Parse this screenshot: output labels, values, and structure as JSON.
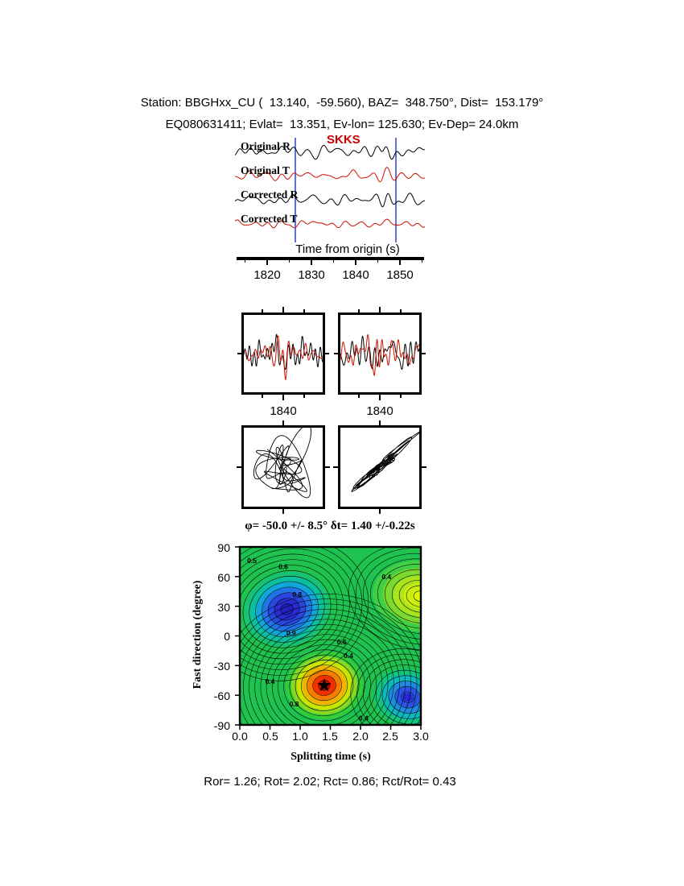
{
  "header": {
    "line1": "Station: BBGHxx_CU (  13.140,  -59.560), BAZ=  348.750°, Dist=  153.179°",
    "line2": "EQ080631411; Evlat=  13.351, Ev-lon= 125.630; Ev-Dep= 24.0km"
  },
  "waveforms": {
    "phase_label": "SKKS",
    "traces": [
      "Original R",
      "Original T",
      "Corrected R",
      "Corrected T"
    ],
    "trace_colors": [
      "#000000",
      "#cc1100",
      "#000000",
      "#cc1100"
    ],
    "window_color": "#2233cc",
    "xlabel": "Time from origin (s)",
    "xticks": [
      "1820",
      "1830",
      "1840",
      "1850"
    ]
  },
  "panels": {
    "left_tick": "1840",
    "right_tick": "1840"
  },
  "contour": {
    "title": "φ= -50.0 +/- 8.5°  δt= 1.40 +/-0.22s",
    "ylabel": "Fast direction (degree)",
    "xlabel": "Splitting time (s)",
    "yticks": [
      "90",
      "60",
      "30",
      "0",
      "-30",
      "-60",
      "-90"
    ],
    "xticks": [
      "0.0",
      "0.5",
      "1.0",
      "1.5",
      "2.0",
      "2.5",
      "3.0"
    ]
  },
  "footer": "Ror= 1.26; Rot= 2.02; Rct= 0.86; Rct/Rot= 0.43",
  "results": {
    "Ror": 1.26,
    "Rot": 2.02,
    "Rct": 0.86,
    "Rct_over_Rot": 0.43
  },
  "chart_data": [
    {
      "type": "line",
      "id": "origin-waveforms",
      "series": [
        {
          "name": "Original R",
          "color": "#000000"
        },
        {
          "name": "Original T",
          "color": "#cc1100"
        },
        {
          "name": "Corrected R",
          "color": "#000000"
        },
        {
          "name": "Corrected T",
          "color": "#cc1100"
        }
      ],
      "phase": "SKKS",
      "xlabel": "Time from origin (s)",
      "xlim": [
        1813,
        1856
      ],
      "xticks": [
        1820,
        1830,
        1840,
        1850
      ],
      "analysis_window_s": [
        1826,
        1849
      ]
    },
    {
      "type": "line",
      "id": "window-original",
      "series": [
        {
          "name": "R",
          "color": "#000000"
        },
        {
          "name": "T",
          "color": "#cc1100"
        }
      ],
      "xticks": [
        1840
      ]
    },
    {
      "type": "line",
      "id": "window-corrected",
      "series": [
        {
          "name": "R",
          "color": "#000000"
        },
        {
          "name": "T",
          "color": "#cc1100"
        }
      ],
      "xticks": [
        1840
      ]
    },
    {
      "type": "scatter",
      "id": "particle-motion-original",
      "description": "R vs T particle motion, elliptical loops"
    },
    {
      "type": "scatter",
      "id": "particle-motion-corrected",
      "description": "R vs T particle motion, linearized diagonal"
    },
    {
      "type": "heatmap",
      "id": "splitting-error-surface",
      "title": "φ= -50.0 +/- 8.5°  δt= 1.40 +/-0.22s",
      "xlabel": "Splitting time (s)",
      "ylabel": "Fast direction (degree)",
      "xlim": [
        0,
        3
      ],
      "ylim": [
        -90,
        90
      ],
      "xticks": [
        0.0,
        0.5,
        1.0,
        1.5,
        2.0,
        2.5,
        3.0
      ],
      "yticks": [
        90,
        60,
        30,
        0,
        -30,
        -60,
        -90
      ],
      "background_color": "#1fc24f",
      "best_fit": {
        "phi_deg": -50.0,
        "phi_err_deg": 8.5,
        "dt_s": 1.4,
        "dt_err_s": 0.22,
        "marker": "star"
      },
      "minima_maxima": [
        {
          "t": 0.78,
          "phi": 27,
          "kind": "low",
          "color": "blue"
        },
        {
          "t": 3.0,
          "phi": 40,
          "kind": "high",
          "color": "yellow"
        },
        {
          "t": 1.4,
          "phi": -50,
          "kind": "best",
          "color": "red"
        },
        {
          "t": 2.78,
          "phi": -62,
          "kind": "low",
          "color": "blue"
        }
      ],
      "contour_annotations": [
        {
          "t": 0.2,
          "phi": 76,
          "label": "0.5"
        },
        {
          "t": 0.72,
          "phi": 70,
          "label": "0.6"
        },
        {
          "t": 2.43,
          "phi": 60,
          "label": "0.4"
        },
        {
          "t": 0.95,
          "phi": 42,
          "label": "0.8"
        },
        {
          "t": 0.85,
          "phi": 3,
          "label": "0.9"
        },
        {
          "t": 1.69,
          "phi": -6,
          "label": "0.6"
        },
        {
          "t": 1.8,
          "phi": -20,
          "label": "0.4"
        },
        {
          "t": 0.5,
          "phi": -46,
          "label": "0.4"
        },
        {
          "t": 0.9,
          "phi": -69,
          "label": "0.8"
        },
        {
          "t": 2.05,
          "phi": -83,
          "label": "0.4"
        }
      ]
    }
  ]
}
